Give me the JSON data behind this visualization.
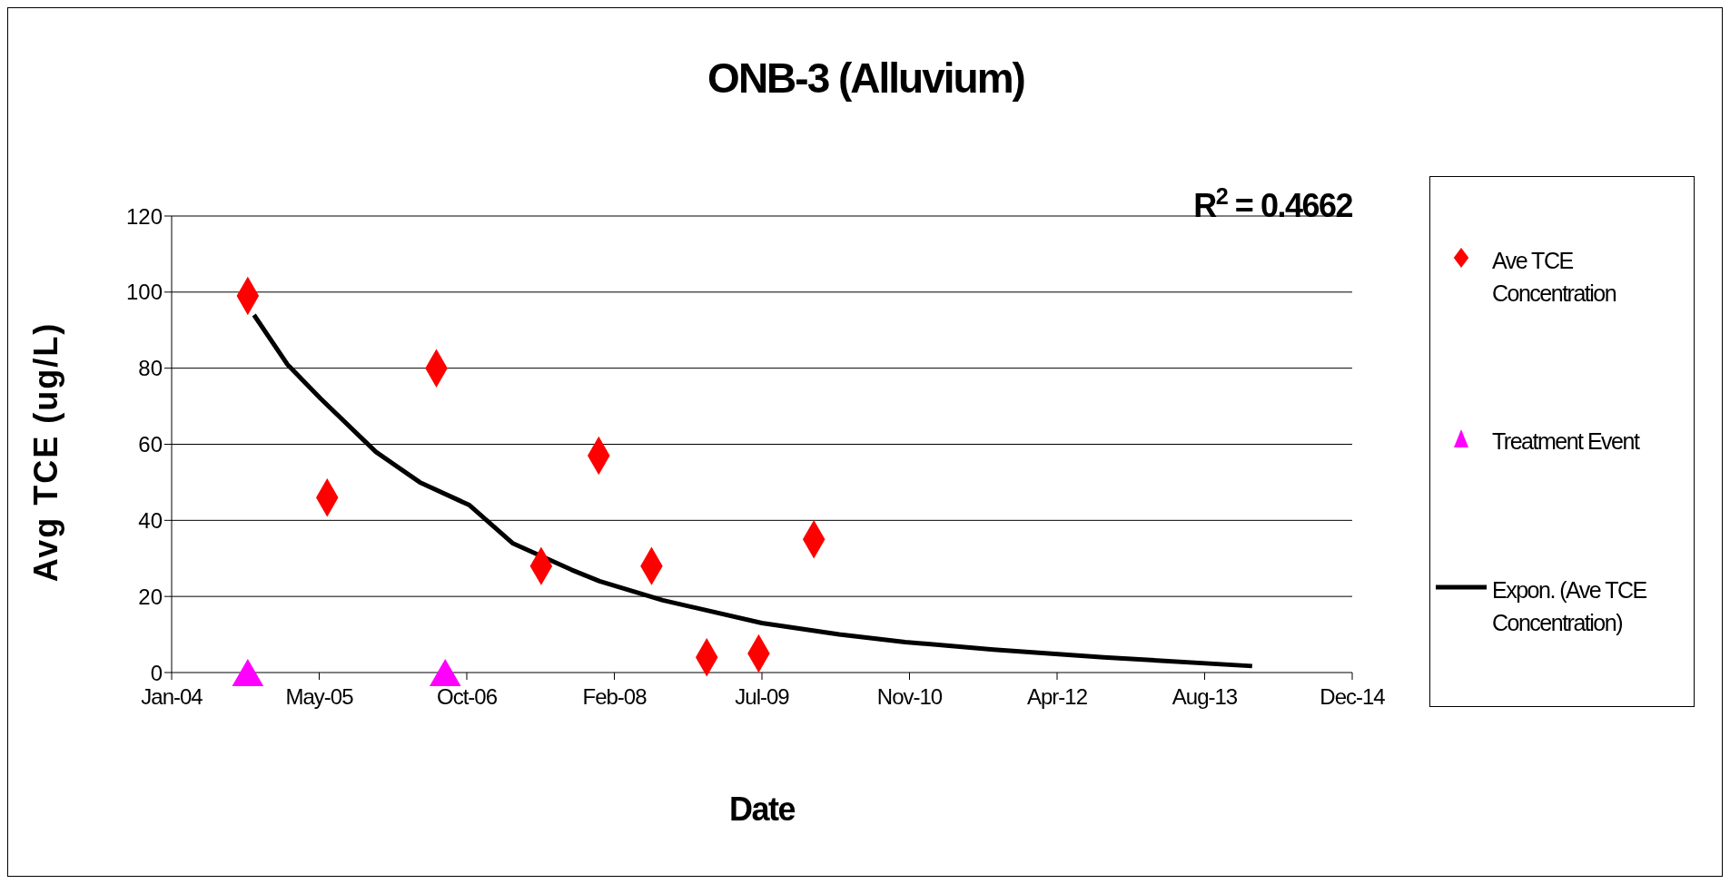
{
  "chart_data": {
    "type": "scatter",
    "title": "ONB-3 (Alluvium)",
    "xlabel": "Date",
    "ylabel": "Avg TCE (ug/L)",
    "annotations": [
      "R$^{2}$ = 0.4662"
    ],
    "xlim": [
      "2004-01-15",
      "2014-12-28"
    ],
    "xticks": [
      {
        "value": "2004-01-15",
        "label": "Jan-04"
      },
      {
        "value": "2005-05-29",
        "label": "May-05"
      },
      {
        "value": "2006-10-11",
        "label": "Oct-06"
      },
      {
        "value": "2008-02-23",
        "label": "Feb-08"
      },
      {
        "value": "2009-07-07",
        "label": "Jul-09"
      },
      {
        "value": "2010-11-19",
        "label": "Nov-10"
      },
      {
        "value": "2012-04-02",
        "label": "Apr-12"
      },
      {
        "value": "2013-08-15",
        "label": "Aug-13"
      },
      {
        "value": "2014-12-28",
        "label": "Dec-14"
      }
    ],
    "ylim": [
      0,
      120
    ],
    "yticks": [
      0,
      20,
      40,
      60,
      80,
      100,
      120
    ],
    "grid": "y",
    "legend": "right",
    "series": [
      {
        "name": "Ave TCE Concentration",
        "marker": "diamond",
        "color": "#ff0000",
        "x": [
          "2004-09-29",
          "2005-06-25",
          "2006-06-30",
          "2007-06-20",
          "2008-01-01",
          "2008-06-28",
          "2009-01-01",
          "2009-06-26",
          "2009-12-30"
        ],
        "values": [
          99,
          46,
          80,
          28,
          57,
          28,
          4,
          5,
          35
        ]
      },
      {
        "name": "Treatment Event",
        "marker": "triangle",
        "color": "#ff00ff",
        "x": [
          "2004-09-29",
          "2006-07-30"
        ],
        "values": [
          0,
          0
        ]
      },
      {
        "name": "Expon. (Ave TCE Concentration)",
        "type": "line",
        "marker": "none",
        "color": "#000000",
        "x": [
          "2004-10-20",
          "2005-02-10",
          "2005-06-03",
          "2005-12-07",
          "2006-05-05",
          "2006-10-20",
          "2007-03-15",
          "2007-10-01",
          "2008-01-04",
          "2008-08-05",
          "2009-07-07",
          "2010-03-26",
          "2010-11-05",
          "2011-08-31",
          "2012-09-07",
          "2014-01-23"
        ],
        "values": [
          94,
          81,
          72,
          58,
          50,
          44,
          34,
          27,
          24,
          19,
          13,
          10,
          8,
          6,
          4,
          1.7
        ]
      }
    ]
  }
}
